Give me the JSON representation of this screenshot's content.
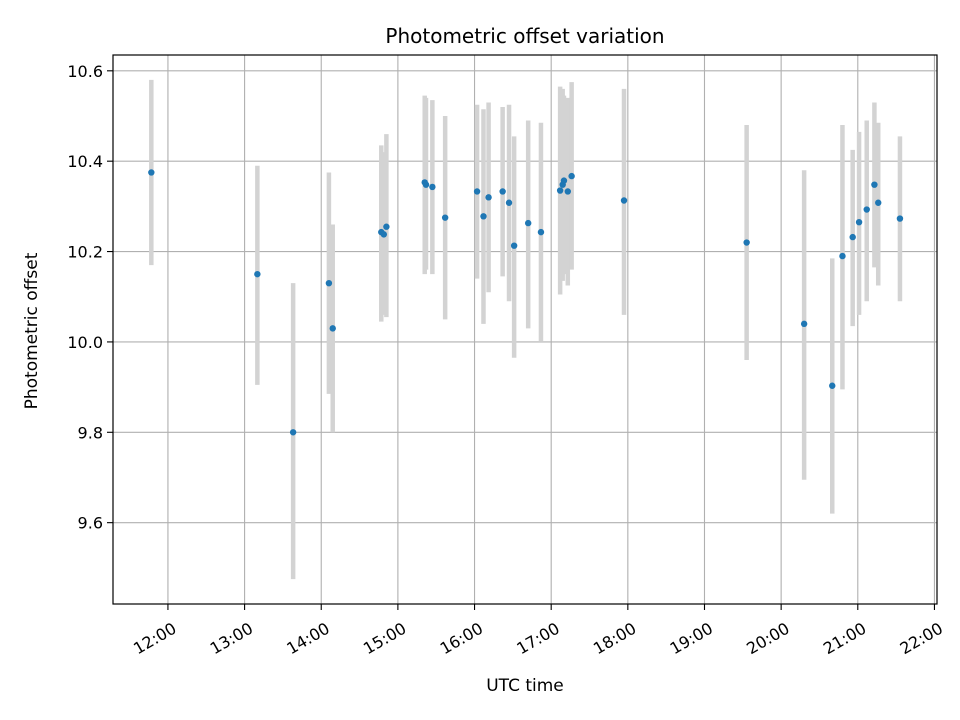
{
  "chart_data": {
    "type": "scatter",
    "title": "Photometric offset variation",
    "xlabel": "UTC time",
    "ylabel": "Photometric offset",
    "x_ticks": [
      "12:00",
      "13:00",
      "14:00",
      "15:00",
      "16:00",
      "17:00",
      "18:00",
      "19:00",
      "20:00",
      "21:00",
      "22:00"
    ],
    "y_ticks": [
      "9.6",
      "9.8",
      "10.0",
      "10.2",
      "10.4",
      "10.6"
    ],
    "xlim": [
      "11:17",
      "22:02"
    ],
    "ylim": [
      9.42,
      10.635
    ],
    "grid": true,
    "point_color": "#1f77b4",
    "error_color": "#d3d3d3",
    "points": [
      {
        "x": "11:47",
        "y": 10.375,
        "low": 10.17,
        "high": 10.58
      },
      {
        "x": "13:10",
        "y": 10.15,
        "low": 9.905,
        "high": 10.39
      },
      {
        "x": "13:38",
        "y": 9.8,
        "low": 9.475,
        "high": 10.13
      },
      {
        "x": "14:06",
        "y": 10.13,
        "low": 9.885,
        "high": 10.375
      },
      {
        "x": "14:09",
        "y": 10.03,
        "low": 9.8,
        "high": 10.26
      },
      {
        "x": "14:47",
        "y": 10.243,
        "low": 10.045,
        "high": 10.435
      },
      {
        "x": "14:49",
        "y": 10.238,
        "low": 10.06,
        "high": 10.42
      },
      {
        "x": "14:51",
        "y": 10.255,
        "low": 10.055,
        "high": 10.46
      },
      {
        "x": "15:21",
        "y": 10.353,
        "low": 10.15,
        "high": 10.545
      },
      {
        "x": "15:22",
        "y": 10.348,
        "low": 10.16,
        "high": 10.54
      },
      {
        "x": "15:27",
        "y": 10.343,
        "low": 10.15,
        "high": 10.535
      },
      {
        "x": "15:37",
        "y": 10.275,
        "low": 10.05,
        "high": 10.5
      },
      {
        "x": "16:02",
        "y": 10.333,
        "low": 10.14,
        "high": 10.525
      },
      {
        "x": "16:07",
        "y": 10.278,
        "low": 10.04,
        "high": 10.515
      },
      {
        "x": "16:11",
        "y": 10.32,
        "low": 10.11,
        "high": 10.53
      },
      {
        "x": "16:22",
        "y": 10.333,
        "low": 10.145,
        "high": 10.52
      },
      {
        "x": "16:27",
        "y": 10.308,
        "low": 10.09,
        "high": 10.525
      },
      {
        "x": "16:31",
        "y": 10.213,
        "low": 9.965,
        "high": 10.455
      },
      {
        "x": "16:42",
        "y": 10.263,
        "low": 10.03,
        "high": 10.49
      },
      {
        "x": "16:52",
        "y": 10.243,
        "low": 10.0,
        "high": 10.485
      },
      {
        "x": "17:07",
        "y": 10.335,
        "low": 10.105,
        "high": 10.565
      },
      {
        "x": "17:09",
        "y": 10.348,
        "low": 10.135,
        "high": 10.56
      },
      {
        "x": "17:10",
        "y": 10.357,
        "low": 10.15,
        "high": 10.545
      },
      {
        "x": "17:13",
        "y": 10.333,
        "low": 10.125,
        "high": 10.54
      },
      {
        "x": "17:16",
        "y": 10.367,
        "low": 10.16,
        "high": 10.575
      },
      {
        "x": "17:57",
        "y": 10.313,
        "low": 10.06,
        "high": 10.56
      },
      {
        "x": "19:33",
        "y": 10.22,
        "low": 9.96,
        "high": 10.48
      },
      {
        "x": "20:18",
        "y": 10.04,
        "low": 9.695,
        "high": 10.38
      },
      {
        "x": "20:40",
        "y": 9.903,
        "low": 9.62,
        "high": 10.185
      },
      {
        "x": "20:48",
        "y": 10.19,
        "low": 9.895,
        "high": 10.48
      },
      {
        "x": "20:56",
        "y": 10.232,
        "low": 10.035,
        "high": 10.425
      },
      {
        "x": "21:01",
        "y": 10.265,
        "low": 10.06,
        "high": 10.465
      },
      {
        "x": "21:07",
        "y": 10.293,
        "low": 10.09,
        "high": 10.49
      },
      {
        "x": "21:13",
        "y": 10.348,
        "low": 10.165,
        "high": 10.53
      },
      {
        "x": "21:16",
        "y": 10.308,
        "low": 10.125,
        "high": 10.485
      },
      {
        "x": "21:33",
        "y": 10.273,
        "low": 10.09,
        "high": 10.455
      }
    ]
  }
}
